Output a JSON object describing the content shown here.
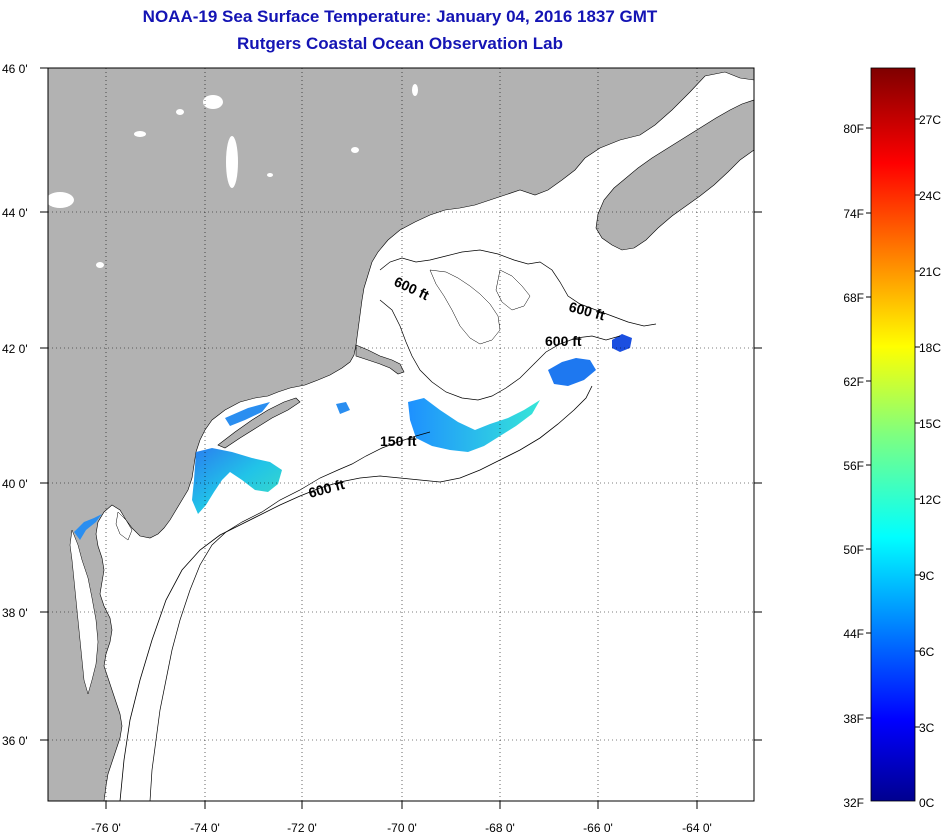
{
  "header": {
    "title": "NOAA-19 Sea Surface Temperature:  January 04, 2016 1837 GMT",
    "subtitle": "Rutgers Coastal Ocean Observation Lab"
  },
  "map": {
    "lat_labels": [
      "46 0'",
      "44 0'",
      "42 0'",
      "40 0'",
      "38 0'",
      "36 0'"
    ],
    "lon_labels": [
      "-76 0'",
      "-74 0'",
      "-72 0'",
      "-70 0'",
      "-68 0'",
      "-66 0'",
      "-64 0'"
    ],
    "contour_labels": [
      "600 ft",
      "600 ft",
      "600 ft",
      "150 ft",
      "600 ft"
    ],
    "colors": {
      "land": "#b2b2b2",
      "water": "#ffffff",
      "grid": "#000000"
    }
  },
  "colorbar": {
    "fahrenheit_labels": [
      "80F",
      "74F",
      "68F",
      "62F",
      "56F",
      "50F",
      "44F",
      "38F",
      "32F"
    ],
    "celsius_labels": [
      "27C",
      "24C",
      "21C",
      "18C",
      "15C",
      "12C",
      "9C",
      "6C",
      "3C",
      "0C"
    ]
  }
}
